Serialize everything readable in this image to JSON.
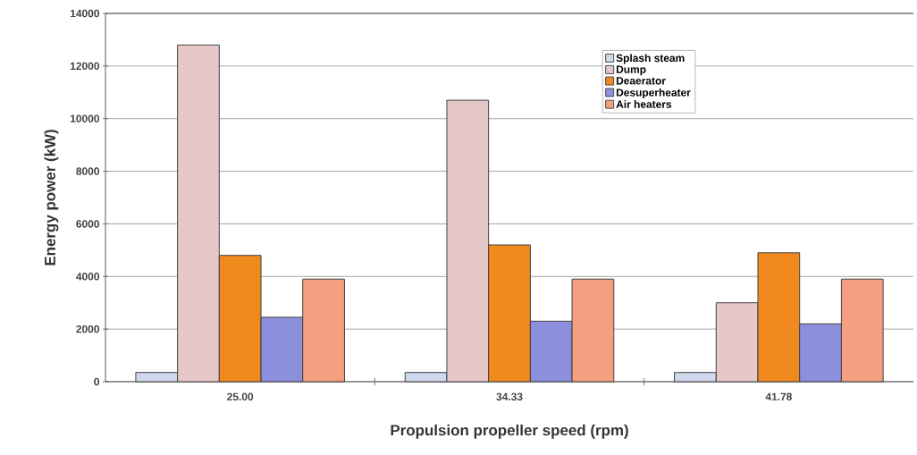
{
  "chart_data": {
    "type": "bar",
    "xlabel": "Propulsion propeller speed (rpm)",
    "ylabel": "Energy power (kW)",
    "categories": [
      "25.00",
      "34.33",
      "41.78"
    ],
    "series": [
      {
        "name": "Splash steam",
        "color": "#d0d8ee",
        "values": [
          350,
          350,
          350
        ]
      },
      {
        "name": "Dump",
        "color": "#e6c8c8",
        "values": [
          12800,
          10700,
          3000
        ]
      },
      {
        "name": "Deaerator",
        "color": "#f08a1e",
        "values": [
          4800,
          5200,
          4900
        ]
      },
      {
        "name": "Desuperheater",
        "color": "#8c8fdc",
        "values": [
          2450,
          2300,
          2200
        ]
      },
      {
        "name": "Air heaters",
        "color": "#f4a080",
        "values": [
          3900,
          3900,
          3900
        ]
      }
    ],
    "ylim": [
      0,
      14000
    ],
    "yticks": [
      0,
      2000,
      4000,
      6000,
      8000,
      10000,
      12000,
      14000
    ],
    "grid": "y",
    "legend": "top"
  }
}
